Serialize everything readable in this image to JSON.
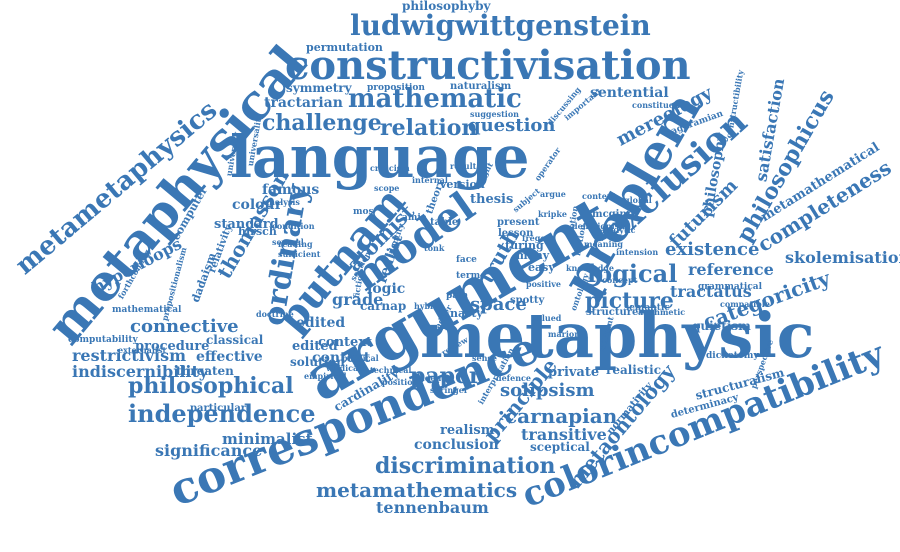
{
  "color": "#3a77b5",
  "words": [
    "argument",
    "metaphysic",
    "language",
    "metaphysical",
    "constructivisation",
    "correspondence",
    "colorincompatibility",
    "ludwigwittgenstein",
    "problem",
    "putnam",
    "metametaphysics",
    "model",
    "mathematic",
    "exclusion",
    "ordinary",
    "philosophicus",
    "metamathematics",
    "logical",
    "independence",
    "philosophical",
    "discrimination",
    "paper",
    "picture",
    "categoricity",
    "completeness",
    "challenge",
    "relation",
    "question",
    "metaontology",
    "futurism",
    "principle",
    "atomist",
    "carnapian",
    "solipsism",
    "existence",
    "tractarian",
    "sentential",
    "mereology",
    "skolemisation",
    "tractatus",
    "metamathematical",
    "satisfaction",
    "philosophy",
    "reference",
    "connective",
    "hyperloops",
    "thomasson",
    "transitive",
    "tennenbaum",
    "logic",
    "truth",
    "restrictivism",
    "indiscernibility",
    "minimalist",
    "significance",
    "effective",
    "procedure",
    "grade",
    "space",
    "edited",
    "context",
    "realist",
    "philosophyby",
    "permutation",
    "symmetry",
    "proposition",
    "naturalism",
    "structuralism",
    "determinacy",
    "normativity",
    "realistic",
    "quietism",
    "semantic",
    "compatible",
    "grammatical",
    "dichotomy",
    "colour",
    "famous",
    "standard",
    "computer",
    "relativity",
    "dadaism",
    "hirsch",
    "conclusion",
    "sceptical",
    "realism",
    "cardinality",
    "private",
    "context",
    "edited",
    "solution",
    "classical",
    "threaten",
    "particular",
    "computability",
    "mathematical",
    "externalist",
    "turing",
    "lesson",
    "present",
    "thesis",
    "version",
    "nasty",
    "spotty",
    "carnap",
    "table",
    "theory",
    "amie",
    "pain",
    "face",
    "easy",
    "many",
    "term",
    "mos",
    "structure",
    "arithmetic",
    "mcginn",
    "baghramian",
    "constituent",
    "constructibility",
    "perspective",
    "universality",
    "university",
    "suggestion",
    "important",
    "discussing",
    "forthcoming",
    "propositionalism",
    "analysis",
    "condition",
    "several",
    "reading",
    "sufficient",
    "doctrine",
    "empirical",
    "physical",
    "vindicate",
    "technical",
    "position",
    "evidence",
    "springer",
    "interpretation",
    "defence",
    "review",
    "subject",
    "operator",
    "criticism",
    "scope",
    "internal",
    "result",
    "weight",
    "tonk",
    "identity",
    "section",
    "fiction",
    "notion",
    "motion",
    "ladder",
    "hybrid",
    "valued",
    "sense",
    "marion",
    "militant",
    "knowledge",
    "ontology",
    "positive",
    "frege",
    "kripke",
    "meaning",
    "deflationism",
    "analytic",
    "intension",
    "concept",
    "content",
    "argue",
    "global",
    "irrealist",
    "primitive",
    "reality"
  ]
}
